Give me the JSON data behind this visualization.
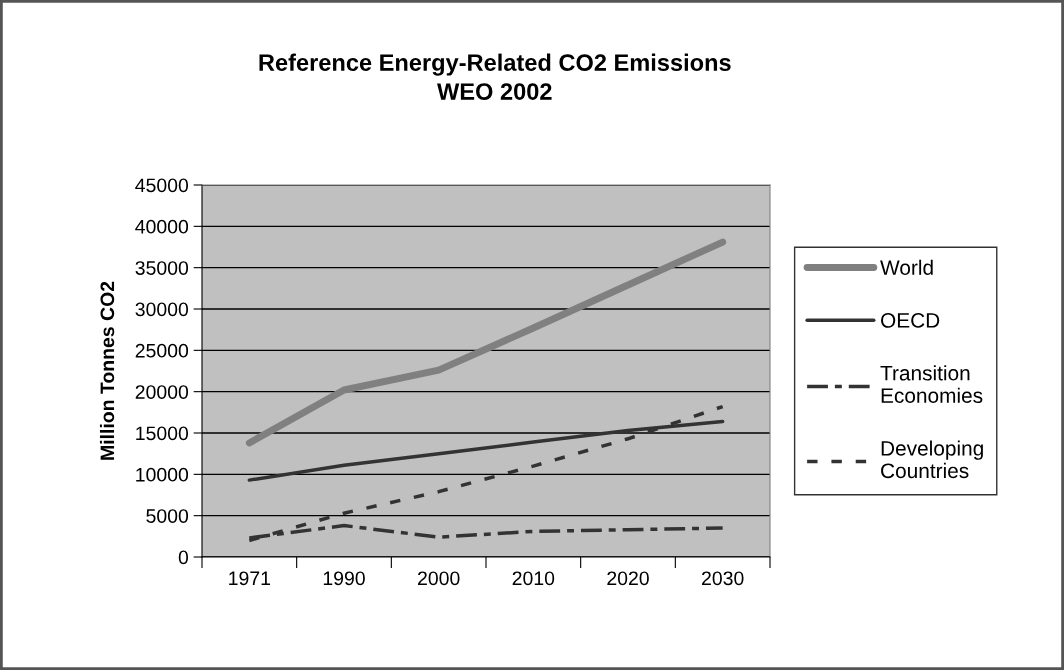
{
  "chart_data": {
    "type": "line",
    "title": "Reference Energy-Related CO2 Emissions\nWEO 2002",
    "ylabel": "Million Tonnes CO2",
    "categories": [
      "1971",
      "1990",
      "2000",
      "2010",
      "2020",
      "2030"
    ],
    "series": [
      {
        "name": "World",
        "color": "#808080",
        "line_style": "solid",
        "values": [
          13800,
          20200,
          22600,
          27700,
          32900,
          38100
        ]
      },
      {
        "name": "OECD",
        "color": "#333333",
        "line_style": "solid",
        "values": [
          9300,
          11100,
          12500,
          13900,
          15300,
          16400
        ]
      },
      {
        "name": "Transition\nEconomies",
        "color": "#333333",
        "line_style": "dashed",
        "values": [
          2300,
          3800,
          2400,
          3100,
          3300,
          3500
        ]
      },
      {
        "name": "Developing\nCountries",
        "color": "#333333",
        "line_style": "dotted",
        "values": [
          2000,
          5300,
          7900,
          11000,
          14300,
          18200
        ]
      }
    ],
    "ylim": [
      0,
      45000
    ],
    "yticks": [
      0,
      5000,
      10000,
      15000,
      20000,
      25000,
      30000,
      35000,
      40000,
      45000
    ],
    "grid": "y",
    "legend": "right",
    "marker": "none"
  }
}
